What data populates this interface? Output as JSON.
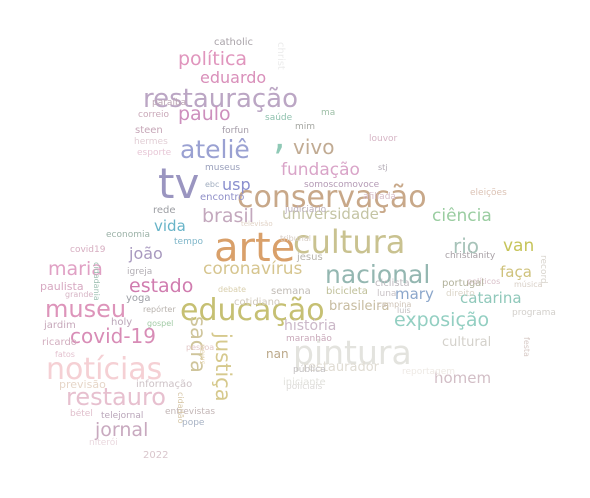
{
  "words": [
    {
      "text": "arte",
      "color": "#d9a06a",
      "rotated": false
    },
    {
      "text": "pintura",
      "color": "#e3e3de",
      "rotated": false
    },
    {
      "text": "tv",
      "color": "#9a95c0",
      "rotated": false
    },
    {
      "text": "cultura",
      "color": "#c9c290",
      "rotated": false
    },
    {
      "text": "conservação",
      "color": "#c8a889",
      "rotated": false
    },
    {
      "text": "notícias",
      "color": "#f5d0d4",
      "rotated": false
    },
    {
      "text": "educação",
      "color": "#c6c073",
      "rotated": false
    },
    {
      "text": "restauração",
      "color": "#bba6c4",
      "rotated": false
    },
    {
      "text": "ateliê",
      "color": "#9aa1d2",
      "rotated": false
    },
    {
      "text": "nacional",
      "color": "#94b7b1",
      "rotated": false
    },
    {
      "text": "museu",
      "color": "#dd94ba",
      "rotated": false
    },
    {
      "text": "restauro",
      "color": "#e7c0cf",
      "rotated": false
    },
    {
      "text": "sacra",
      "color": "#cfc59b",
      "rotated": true
    },
    {
      "text": "justiça",
      "color": "#d6c98d",
      "rotated": true
    },
    {
      "text": "covid-19",
      "color": "#d88cb6",
      "rotated": false
    },
    {
      "text": "política",
      "color": "#e095bd",
      "rotated": false
    },
    {
      "text": "exposição",
      "color": "#93cfc2",
      "rotated": false
    },
    {
      "text": "vivo",
      "color": "#c1ab93",
      "rotated": false
    },
    {
      "text": "paulo",
      "color": "#cd8fbd",
      "rotated": false
    },
    {
      "text": "maria",
      "color": "#e0a0c4",
      "rotated": false
    },
    {
      "text": "estado",
      "color": "#d07caf",
      "rotated": false
    },
    {
      "text": "brasil",
      "color": "#c3a8bd",
      "rotated": false
    },
    {
      "text": "fundação",
      "color": "#d9a4c8",
      "rotated": false
    },
    {
      "text": "coronavírus",
      "color": "#d6c58f",
      "rotated": false
    },
    {
      "text": "ciência",
      "color": "#9acda1",
      "rotated": false
    },
    {
      "text": "universidade",
      "color": "#c4c4a4",
      "rotated": false
    },
    {
      "text": "rio",
      "color": "#a7c3b9",
      "rotated": false
    },
    {
      "text": "catarina",
      "color": "#8fc8ba",
      "rotated": false
    },
    {
      "text": "mary",
      "color": "#8ca7cb",
      "rotated": false
    },
    {
      "text": "joão",
      "color": "#a899bf",
      "rotated": false
    },
    {
      "text": "van",
      "color": "#c6c45a",
      "rotated": false
    },
    {
      "text": "jornal",
      "color": "#c8a9bf",
      "rotated": false
    },
    {
      "text": "homem",
      "color": "#d2bec6",
      "rotated": false
    },
    {
      "text": "história",
      "color": "#cbb8c8",
      "rotated": false
    },
    {
      "text": "cultural",
      "color": "#d4d1cb",
      "rotated": false
    },
    {
      "text": "eduardo",
      "color": "#d98fba",
      "rotated": false
    },
    {
      "text": "usp",
      "color": "#8a8fce",
      "rotated": false
    },
    {
      "text": "vida",
      "color": "#68b4c8",
      "rotated": false
    },
    {
      "text": "faça",
      "color": "#cfc27c",
      "rotated": false
    },
    {
      "text": "restaurador",
      "color": "#e0dcd3",
      "rotated": false
    },
    {
      "text": "brasileira",
      "color": "#c7bca0",
      "rotated": false
    },
    {
      "text": "nan",
      "color": "#bba889",
      "rotated": false
    },
    {
      "text": "paulista",
      "color": "#d7a9c2",
      "rotated": false
    },
    {
      "text": "catholic",
      "color": "#a9a3a9",
      "rotated": false
    },
    {
      "text": "christ",
      "color": "#ececec",
      "rotated": true
    },
    {
      "text": "museus",
      "color": "#9aa0bc",
      "rotated": false
    },
    {
      "text": "encontro",
      "color": "#8f8fc8",
      "rotated": false
    },
    {
      "text": "rede",
      "color": "#9c9ea3",
      "rotated": false
    },
    {
      "text": "forfun",
      "color": "#a49ca8",
      "rotated": false
    },
    {
      "text": "mim",
      "color": "#a5a7a2",
      "rotated": false
    },
    {
      "text": "saúde",
      "color": "#8fc1ae",
      "rotated": false
    },
    {
      "text": "steen",
      "color": "#c6a6b7",
      "rotated": false
    },
    {
      "text": "hermes",
      "color": "#e2cfd6",
      "rotated": false
    },
    {
      "text": "esporte",
      "color": "#e8c8d7",
      "rotated": false
    },
    {
      "text": "correio",
      "color": "#c9a8b8",
      "rotated": false
    },
    {
      "text": "paraíba",
      "color": "#bba4b2",
      "rotated": false
    },
    {
      "text": "ma",
      "color": "#9fc0a8",
      "rotated": false
    },
    {
      "text": "stj",
      "color": "#b0a8b3",
      "rotated": false
    },
    {
      "text": "louvor",
      "color": "#d6b5c5",
      "rotated": false
    },
    {
      "text": "afiliada",
      "color": "#d7bdc8",
      "rotated": false
    },
    {
      "text": "somoscomovoce",
      "color": "#b49ab5",
      "rotated": false
    },
    {
      "text": "eleições",
      "color": "#dcc3b5",
      "rotated": false
    },
    {
      "text": "christianity",
      "color": "#a8a1a6",
      "rotated": false
    },
    {
      "text": "políticos",
      "color": "#d8bfc8",
      "rotated": false
    },
    {
      "text": "portugal",
      "color": "#b1b19a",
      "rotated": false
    },
    {
      "text": "ciclista",
      "color": "#c0bbc0",
      "rotated": false
    },
    {
      "text": "luna",
      "color": "#c9c3c6",
      "rotated": false
    },
    {
      "text": "direito",
      "color": "#dcd6c9",
      "rotated": false
    },
    {
      "text": "música",
      "color": "#d8cfc6",
      "rotated": false
    },
    {
      "text": "programa",
      "color": "#d3d0cc",
      "rotated": false
    },
    {
      "text": "record",
      "color": "#d9d5ce",
      "rotated": true
    },
    {
      "text": "covid19",
      "color": "#d7aec1",
      "rotated": false
    },
    {
      "text": "economia",
      "color": "#9cb2a8",
      "rotated": false
    },
    {
      "text": "tempo",
      "color": "#7fb6c9",
      "rotated": false
    },
    {
      "text": "televisão",
      "color": "#e1d3c6",
      "rotated": false
    },
    {
      "text": "tribunal",
      "color": "#d6ccc4",
      "rotated": false
    },
    {
      "text": "judiciário",
      "color": "#bdb1c0",
      "rotated": false
    },
    {
      "text": "ebc",
      "color": "#a2aec0",
      "rotated": false
    },
    {
      "text": "cidadania",
      "color": "#9fc1b3",
      "rotated": true
    },
    {
      "text": "igreja",
      "color": "#b2aeb4",
      "rotated": false
    },
    {
      "text": "jesus",
      "color": "#b7b4ad",
      "rotated": false
    },
    {
      "text": "semana",
      "color": "#c1bcb6",
      "rotated": false
    },
    {
      "text": "cotidiano",
      "color": "#d1c9bc",
      "rotated": false
    },
    {
      "text": "bicicleta",
      "color": "#bfbf98",
      "rotated": false
    },
    {
      "text": "yoga",
      "color": "#9d9fa5",
      "rotated": false
    },
    {
      "text": "grande",
      "color": "#d7b6c6",
      "rotated": false
    },
    {
      "text": "jardim",
      "color": "#c7a9bb",
      "rotated": false
    },
    {
      "text": "holy",
      "color": "#bba6b8",
      "rotated": false
    },
    {
      "text": "repórter",
      "color": "#b9b3ae",
      "rotated": false
    },
    {
      "text": "gospel",
      "color": "#a2cba6",
      "rotated": false
    },
    {
      "text": "debate",
      "color": "#d9cfad",
      "rotated": false
    },
    {
      "text": "campina",
      "color": "#cfc4b8",
      "rotated": false
    },
    {
      "text": "luís",
      "color": "#c2bfc1",
      "rotated": false
    },
    {
      "text": "festa",
      "color": "#d6c8c4",
      "rotated": true
    },
    {
      "text": "ricardo",
      "color": "#d2aebf",
      "rotated": false
    },
    {
      "text": "fatos",
      "color": "#e4c3d0",
      "rotated": false
    },
    {
      "text": "pessoa",
      "color": "#e3c9c8",
      "rotated": false
    },
    {
      "text": "news",
      "color": "#e4d5b1",
      "rotated": true
    },
    {
      "text": "maranhão",
      "color": "#c9a9ba",
      "rotated": false
    },
    {
      "text": "pública",
      "color": "#c3c0c2",
      "rotated": false
    },
    {
      "text": "policiais",
      "color": "#dcdad8",
      "rotated": false
    },
    {
      "text": "iniciante",
      "color": "#e2e2dd",
      "rotated": false
    },
    {
      "text": "reportagem",
      "color": "#eeeae5",
      "rotated": false
    },
    {
      "text": "previsão",
      "color": "#e6d6c8",
      "rotated": false
    },
    {
      "text": "informação",
      "color": "#cdc2c6",
      "rotated": false
    },
    {
      "text": "entrevistas",
      "color": "#c3b6b6",
      "rotated": false
    },
    {
      "text": "telejornal",
      "color": "#b9a5b9",
      "rotated": false
    },
    {
      "text": "bétel",
      "color": "#e0bfcc",
      "rotated": false
    },
    {
      "text": "niterói",
      "color": "#ead9df",
      "rotated": false
    },
    {
      "text": "2022",
      "color": "#d9c6cc",
      "rotated": false
    },
    {
      "text": "cidadão",
      "color": "#d6c6a6",
      "rotated": true
    },
    {
      "text": "pope",
      "color": "#a7b2c4",
      "rotated": false
    },
    {
      "text": ",",
      "color": "#8fc9b6",
      "rotated": false
    }
  ]
}
